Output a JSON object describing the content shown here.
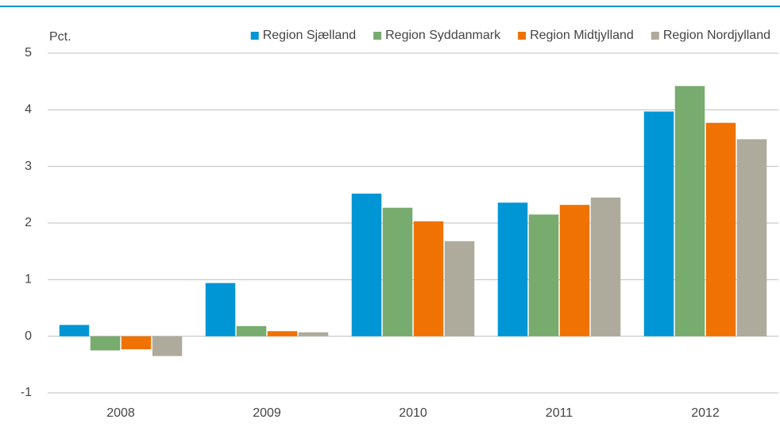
{
  "chart_data": {
    "type": "bar",
    "y_label": "Pct.",
    "categories": [
      "2008",
      "2009",
      "2010",
      "2011",
      "2012"
    ],
    "series": [
      {
        "name": "Region Sjælland",
        "color": "#0096d6",
        "values": [
          0.2,
          0.94,
          2.52,
          2.36,
          3.97
        ]
      },
      {
        "name": "Region Syddanmark",
        "color": "#78ab6e",
        "values": [
          -0.25,
          0.18,
          2.27,
          2.15,
          4.42
        ]
      },
      {
        "name": "Region Midtjylland",
        "color": "#ef7203",
        "values": [
          -0.23,
          0.09,
          2.03,
          2.32,
          3.77
        ]
      },
      {
        "name": "Region Nordjylland",
        "color": "#aeab9d",
        "values": [
          -0.35,
          0.07,
          1.68,
          2.45,
          3.48
        ]
      }
    ],
    "ylim": [
      -1,
      5
    ],
    "yticks": [
      -1,
      0,
      1,
      2,
      3,
      4,
      5
    ],
    "grid": true,
    "legend": "top-right"
  }
}
